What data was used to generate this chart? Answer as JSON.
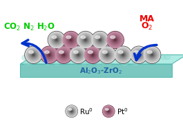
{
  "bg_color": "#ffffff",
  "support_top_color": "#b0ece4",
  "support_side_color": "#8dd8d0",
  "support_front_color": "#7ac8c0",
  "support_label": "Al$_2$O$_3$-ZrO$_2$",
  "support_label_color": "#2060a0",
  "left_text": "CO$_2$ N$_2$ H$_2$O",
  "left_text_color": "#00cc00",
  "right_text_line1": "MA",
  "right_text_line2": "O$_2$",
  "right_text_color": "#ee0000",
  "legend_ru_label": "Ru$^0$",
  "legend_pt_label": "Pt$^0$",
  "legend_text_color": "#000000",
  "ru_inner": "#d8d8d8",
  "ru_outer": "#303030",
  "pt_inner": "#c890a8",
  "pt_outer": "#4a1828",
  "arrow_color": "#0033cc",
  "spheres": [
    [
      38,
      0,
      "ru"
    ],
    [
      62,
      0,
      "pt"
    ],
    [
      84,
      0,
      "pt"
    ],
    [
      106,
      0,
      "ru"
    ],
    [
      128,
      0,
      "pt"
    ],
    [
      150,
      0,
      "ru"
    ],
    [
      174,
      0,
      "ru"
    ],
    [
      198,
      0,
      "ru"
    ],
    [
      73,
      1,
      "ru"
    ],
    [
      95,
      1,
      "pt"
    ],
    [
      117,
      1,
      "ru"
    ],
    [
      139,
      1,
      "ru"
    ],
    [
      163,
      1,
      "pt"
    ],
    [
      215,
      0,
      "ru"
    ]
  ]
}
